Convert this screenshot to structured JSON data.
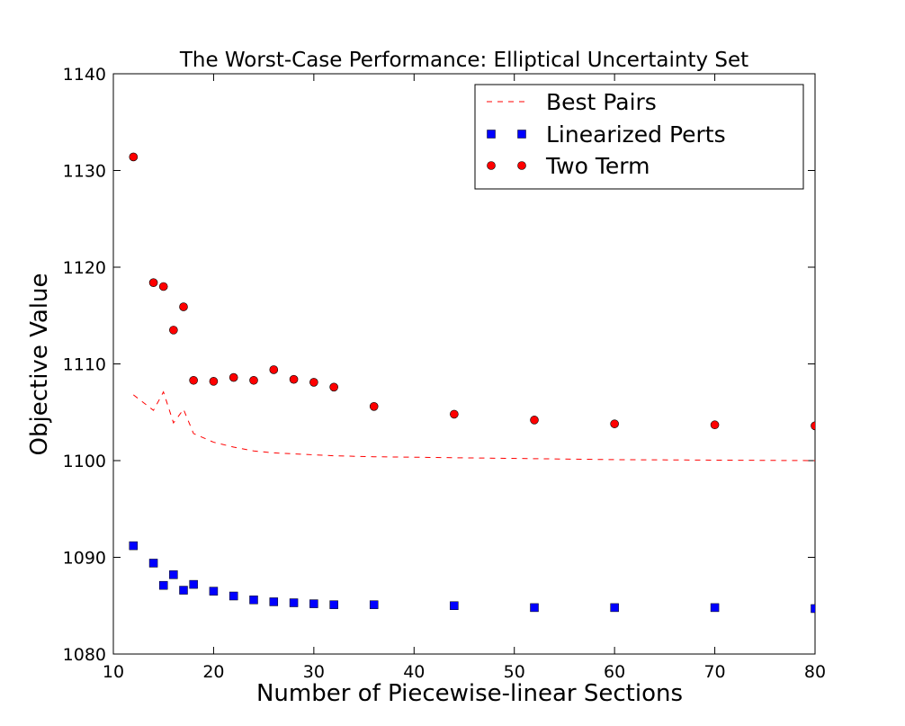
{
  "chart_data": {
    "type": "scatter",
    "title": "The Worst-Case Performance: Elliptical Uncertainty Set",
    "xlabel": "Number of Piecewise-linear Sections",
    "ylabel": "Objective Value",
    "xlim": [
      10,
      80
    ],
    "ylim": [
      1080,
      1140
    ],
    "xticks": [
      10,
      20,
      30,
      40,
      50,
      60,
      70,
      80
    ],
    "yticks": [
      1080,
      1090,
      1100,
      1110,
      1120,
      1130,
      1140
    ],
    "grid": false,
    "legend_position": "top-right",
    "series": [
      {
        "name": "Best Pairs",
        "style": "dashed-line",
        "color": "#ff0000",
        "x": [
          12,
          14,
          15,
          16,
          17,
          18,
          20,
          22,
          24,
          26,
          28,
          30,
          32,
          36,
          44,
          52,
          60,
          70,
          80
        ],
        "y": [
          1106.8,
          1105.2,
          1107.1,
          1103.9,
          1105.3,
          1102.8,
          1101.9,
          1101.4,
          1101.0,
          1100.8,
          1100.7,
          1100.6,
          1100.5,
          1100.4,
          1100.3,
          1100.2,
          1100.1,
          1100.05,
          1100.0
        ]
      },
      {
        "name": "Linearized Perts",
        "style": "square-marker",
        "color": "#0000ff",
        "x": [
          12,
          14,
          15,
          16,
          17,
          18,
          20,
          22,
          24,
          26,
          28,
          30,
          32,
          36,
          44,
          52,
          60,
          70,
          80
        ],
        "y": [
          1091.2,
          1089.4,
          1087.1,
          1088.2,
          1086.6,
          1087.2,
          1086.5,
          1086.0,
          1085.6,
          1085.4,
          1085.3,
          1085.2,
          1085.1,
          1085.1,
          1085.0,
          1084.8,
          1084.8,
          1084.8,
          1084.7
        ]
      },
      {
        "name": "Two Term",
        "style": "circle-marker",
        "color": "#ff0000",
        "x": [
          12,
          14,
          15,
          16,
          17,
          18,
          20,
          22,
          24,
          26,
          28,
          30,
          32,
          36,
          44,
          52,
          60,
          70,
          80
        ],
        "y": [
          1131.4,
          1118.4,
          1118.0,
          1113.5,
          1115.9,
          1108.3,
          1108.2,
          1108.6,
          1108.3,
          1109.4,
          1108.4,
          1108.1,
          1107.6,
          1105.6,
          1104.8,
          1104.2,
          1103.8,
          1103.7,
          1103.6
        ]
      }
    ]
  }
}
